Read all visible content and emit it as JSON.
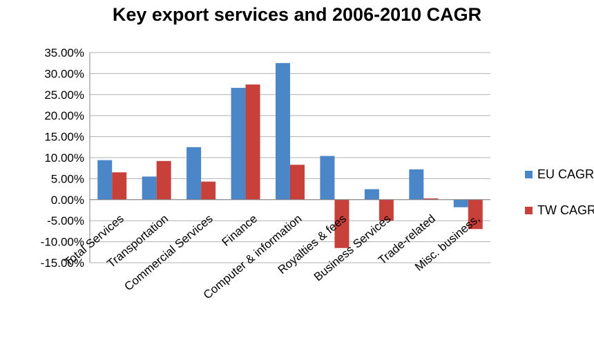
{
  "chart_data": {
    "type": "bar",
    "title": "Key export services and 2006-2010 CAGR",
    "categories": [
      "Total Services",
      "Transportation",
      "Commercial Services",
      "Finance",
      "Computer & information",
      "Royalties & fees",
      "Business Services",
      "Trade-related",
      "Misc. business,"
    ],
    "series": [
      {
        "name": "EU CAGR",
        "color": "#4a86c8",
        "values": [
          0.094,
          0.055,
          0.125,
          0.266,
          0.325,
          0.104,
          0.025,
          0.072,
          -0.018
        ]
      },
      {
        "name": "TW CAGR",
        "color": "#c8403a",
        "values": [
          0.065,
          0.092,
          0.043,
          0.274,
          0.083,
          -0.115,
          -0.05,
          0.003,
          -0.07
        ]
      }
    ],
    "y_ticks": [
      "35.00%",
      "30.00%",
      "25.00%",
      "20.00%",
      "15.00%",
      "10.00%",
      "5.00%",
      "0.00%",
      "-5.00%",
      "-10.00%",
      "-15.00%"
    ],
    "ylim": [
      -0.15,
      0.35
    ],
    "grid": true,
    "legend_position": "right"
  }
}
